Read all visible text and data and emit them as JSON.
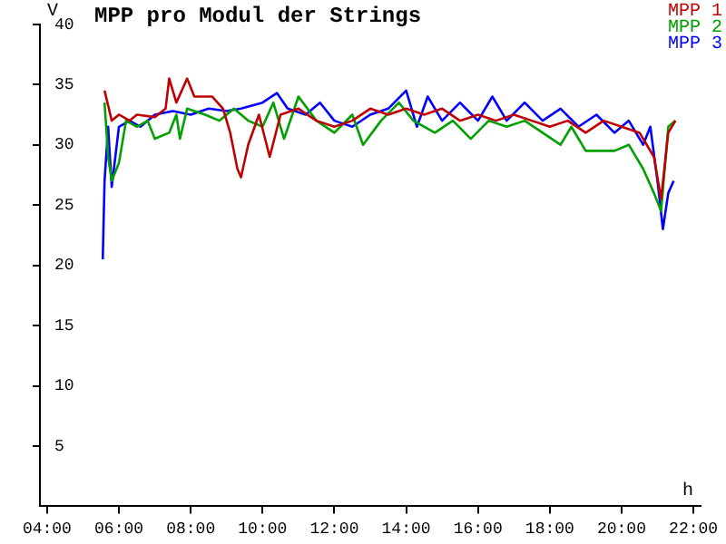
{
  "chart_data": {
    "type": "line",
    "title": "MPP pro Modul der Strings",
    "xlabel": "h",
    "ylabel": "V",
    "legend": "top right",
    "grid": false,
    "marker": "none",
    "line_style": "solid",
    "xlim": [
      3.8,
      22.2
    ],
    "xticks": [
      {
        "value": 4,
        "label": "04:00"
      },
      {
        "value": 6,
        "label": "06:00"
      },
      {
        "value": 8,
        "label": "08:00"
      },
      {
        "value": 10,
        "label": "10:00"
      },
      {
        "value": 12,
        "label": "12:00"
      },
      {
        "value": 14,
        "label": "14:00"
      },
      {
        "value": 16,
        "label": "16:00"
      },
      {
        "value": 18,
        "label": "18:00"
      },
      {
        "value": 20,
        "label": "20:00"
      },
      {
        "value": 22,
        "label": "22:00"
      }
    ],
    "ylim": [
      0,
      40
    ],
    "yticks": [
      5,
      10,
      15,
      20,
      25,
      30,
      35,
      40
    ],
    "series": [
      {
        "name": "MPP 1",
        "color": "#c00000",
        "x": [
          5.6,
          5.8,
          6.0,
          6.3,
          6.5,
          7.0,
          7.3,
          7.4,
          7.6,
          7.9,
          8.1,
          8.6,
          8.9,
          9.1,
          9.3,
          9.4,
          9.6,
          9.9,
          10.2,
          10.5,
          11,
          11.5,
          12,
          12.5,
          13,
          13.5,
          14,
          14.5,
          15,
          15.5,
          16,
          16.5,
          17,
          17.5,
          18,
          18.5,
          19,
          19.5,
          20,
          20.5,
          20.9,
          21.1,
          21.3,
          21.5
        ],
        "values": [
          34.5,
          32,
          32.5,
          32,
          32.5,
          32.3,
          33,
          35.5,
          33.5,
          35.5,
          34,
          34,
          33,
          31,
          28,
          27.3,
          30,
          32.5,
          29,
          32.5,
          33,
          32,
          31.5,
          32,
          33,
          32.5,
          33,
          32.5,
          33,
          32,
          32.5,
          32,
          32.5,
          32,
          31.5,
          32,
          31,
          32,
          31.5,
          31,
          29,
          25.5,
          31,
          32
        ]
      },
      {
        "name": "MPP 2",
        "color": "#00a000",
        "x": [
          5.6,
          5.7,
          5.8,
          6.0,
          6.2,
          6.5,
          6.8,
          7.0,
          7.4,
          7.6,
          7.7,
          7.9,
          8.4,
          8.8,
          9.2,
          9.6,
          10,
          10.3,
          10.6,
          11,
          11.5,
          12,
          12.5,
          12.8,
          13.3,
          13.8,
          14.2,
          14.8,
          15.3,
          15.8,
          16.3,
          16.8,
          17.3,
          17.8,
          18.3,
          18.6,
          19.0,
          19.8,
          20.2,
          20.6,
          20.9,
          21.1,
          21.3,
          21.5
        ],
        "values": [
          33.5,
          29,
          27,
          28.5,
          32,
          31.5,
          32,
          30.5,
          31,
          32.5,
          30.5,
          33,
          32.5,
          32,
          33,
          32,
          31.5,
          33.5,
          30.5,
          34,
          32,
          31,
          32.5,
          30,
          32,
          33.5,
          32,
          31,
          32,
          30.5,
          32,
          31.5,
          32,
          31,
          30,
          31.5,
          29.5,
          29.5,
          30,
          28,
          26,
          24.5,
          31.5,
          32
        ]
      },
      {
        "name": "MPP 3",
        "color": "#0000ff",
        "x": [
          5.55,
          5.6,
          5.7,
          5.8,
          6.0,
          6.3,
          6.6,
          7.0,
          7.5,
          8.0,
          8.5,
          9.0,
          9.4,
          10.0,
          10.4,
          10.7,
          11.2,
          11.6,
          12,
          12.5,
          13,
          13.5,
          14.0,
          14.3,
          14.6,
          15,
          15.5,
          16,
          16.4,
          16.8,
          17.3,
          17.8,
          18.3,
          18.8,
          19.3,
          19.8,
          20.2,
          20.6,
          20.8,
          21.0,
          21.15,
          21.3,
          21.45
        ],
        "values": [
          20.5,
          27,
          31.5,
          26.5,
          31.5,
          32,
          31.5,
          32.5,
          32.8,
          32.5,
          33,
          32.8,
          33,
          33.5,
          34.3,
          33,
          32.5,
          33.5,
          32,
          31.5,
          32.5,
          33,
          34.5,
          31.5,
          34,
          32,
          33.5,
          32,
          34,
          32,
          33.5,
          32,
          33,
          31.5,
          32.5,
          31,
          32,
          30,
          31.5,
          27,
          23,
          26,
          27
        ]
      }
    ]
  }
}
